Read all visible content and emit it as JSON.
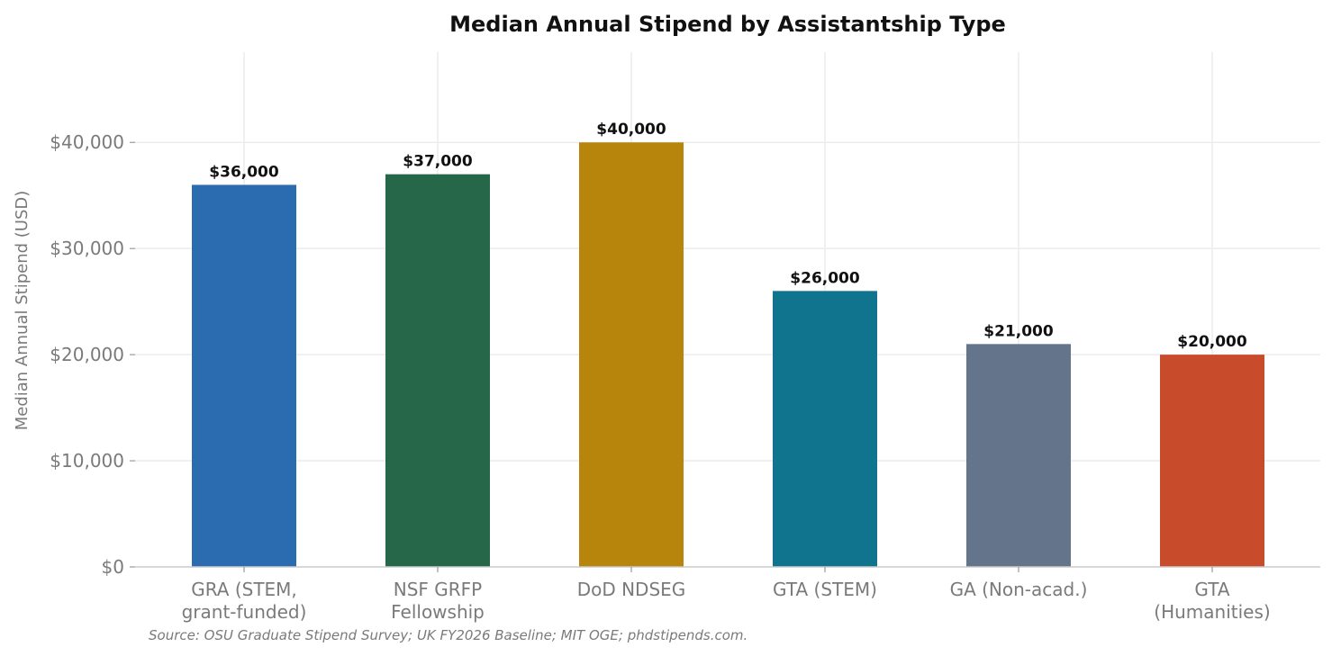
{
  "chart_data": {
    "type": "bar",
    "title": "Median Annual Stipend by Assistantship Type",
    "xlabel": "",
    "ylabel": "Median Annual Stipend (USD)",
    "categories": [
      [
        "GRA (STEM,",
        "grant-funded)"
      ],
      [
        "NSF GRFP",
        "Fellowship"
      ],
      [
        "DoD NDSEG"
      ],
      [
        "GTA (STEM)"
      ],
      [
        "GA (Non-acad.)"
      ],
      [
        "GTA",
        "(Humanities)"
      ]
    ],
    "values": [
      36000,
      37000,
      40000,
      26000,
      21000,
      20000
    ],
    "data_labels": [
      "$36,000",
      "$37,000",
      "$40,000",
      "$26,000",
      "$21,000",
      "$20,000"
    ],
    "colors": [
      "#2b6cb0",
      "#276749",
      "#b7850b",
      "#11748f",
      "#64748b",
      "#c84b2b"
    ],
    "ylim": [
      0,
      48500
    ],
    "yticks": [
      0,
      10000,
      20000,
      30000,
      40000
    ],
    "ytick_labels": [
      "$0",
      "$10,000",
      "$20,000",
      "$30,000",
      "$40,000"
    ],
    "grid": true,
    "source_note": "Source: OSU Graduate Stipend Survey; UK FY2026 Baseline; MIT OGE; phdstipends.com."
  }
}
